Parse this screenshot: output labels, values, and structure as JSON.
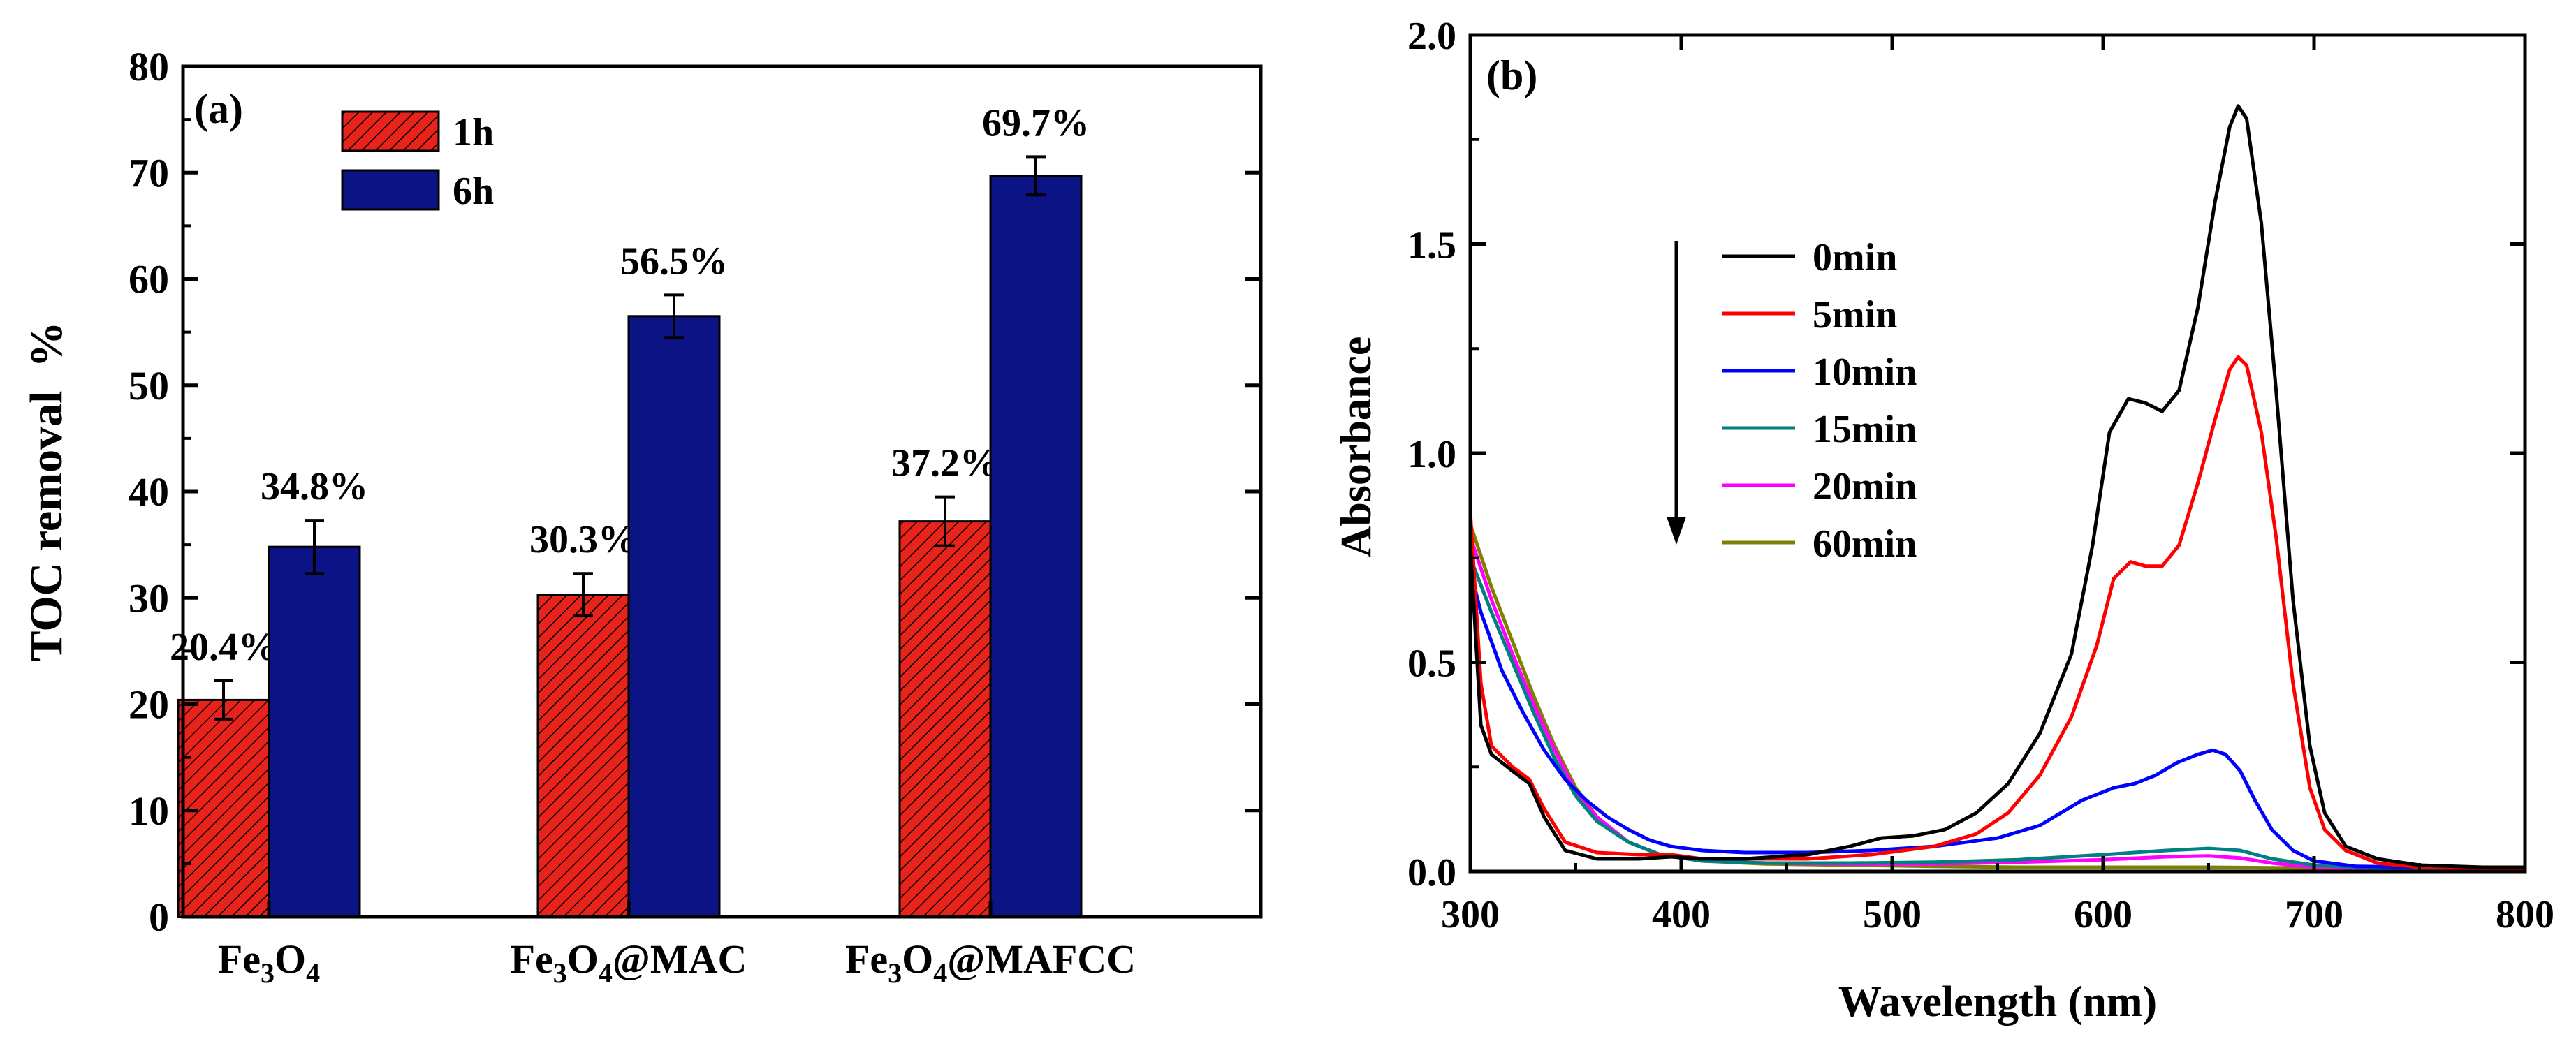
{
  "chart_data": [
    {
      "type": "bar",
      "panel_label": "(a)",
      "title": "",
      "xlabel": "",
      "ylabel": "TOC removal  %",
      "ylim": [
        0,
        80
      ],
      "yticks": [
        0,
        10,
        20,
        30,
        40,
        50,
        60,
        70,
        80
      ],
      "categories": [
        {
          "base": "Fe",
          "sub1": "3",
          "mid": "O",
          "sub2": "4",
          "suffix": ""
        },
        {
          "base": "Fe",
          "sub1": "3",
          "mid": "O",
          "sub2": "4",
          "suffix": "@MAC"
        },
        {
          "base": "Fe",
          "sub1": "3",
          "mid": "O",
          "sub2": "4",
          "suffix": "@MAFCC"
        }
      ],
      "series": [
        {
          "name": "1h",
          "color": "#e8231c",
          "pattern": "hatched",
          "values": [
            20.4,
            30.3,
            37.2
          ],
          "errors": [
            1.8,
            2.0,
            2.3
          ],
          "labels": [
            "20.4%",
            "30.3%",
            "37.2%"
          ]
        },
        {
          "name": "6h",
          "color": "#0c1384",
          "pattern": "solid",
          "values": [
            34.8,
            56.5,
            69.7
          ],
          "errors": [
            2.5,
            2.0,
            1.8
          ],
          "labels": [
            "34.8%",
            "56.5%",
            "69.7%"
          ]
        }
      ],
      "legend_position": "top-left"
    },
    {
      "type": "line",
      "panel_label": "(b)",
      "title": "",
      "xlabel": "Wavelength (nm)",
      "ylabel": "Absorbance",
      "xlim": [
        300,
        800
      ],
      "ylim": [
        0,
        2.0
      ],
      "xticks": [
        300,
        400,
        500,
        600,
        700,
        800
      ],
      "yticks": [
        "0.0",
        "0.5",
        "1.0",
        "1.5",
        "2.0"
      ],
      "legend_position": "center-left",
      "legend_arrow": "down",
      "series": [
        {
          "name": "0min",
          "color": "#000000",
          "points": [
            [
              300,
              0.78
            ],
            [
              305,
              0.35
            ],
            [
              310,
              0.28
            ],
            [
              320,
              0.24
            ],
            [
              328,
              0.21
            ],
            [
              335,
              0.13
            ],
            [
              345,
              0.05
            ],
            [
              360,
              0.03
            ],
            [
              380,
              0.03
            ],
            [
              395,
              0.035
            ],
            [
              410,
              0.03
            ],
            [
              430,
              0.03
            ],
            [
              460,
              0.04
            ],
            [
              480,
              0.06
            ],
            [
              495,
              0.08
            ],
            [
              510,
              0.085
            ],
            [
              525,
              0.1
            ],
            [
              540,
              0.14
            ],
            [
              555,
              0.21
            ],
            [
              570,
              0.33
            ],
            [
              585,
              0.52
            ],
            [
              595,
              0.78
            ],
            [
              603,
              1.05
            ],
            [
              612,
              1.13
            ],
            [
              620,
              1.12
            ],
            [
              628,
              1.1
            ],
            [
              636,
              1.15
            ],
            [
              645,
              1.35
            ],
            [
              653,
              1.6
            ],
            [
              660,
              1.78
            ],
            [
              664,
              1.83
            ],
            [
              668,
              1.8
            ],
            [
              675,
              1.55
            ],
            [
              682,
              1.15
            ],
            [
              690,
              0.65
            ],
            [
              698,
              0.3
            ],
            [
              705,
              0.14
            ],
            [
              715,
              0.06
            ],
            [
              730,
              0.03
            ],
            [
              750,
              0.015
            ],
            [
              780,
              0.01
            ],
            [
              800,
              0.01
            ]
          ]
        },
        {
          "name": "5min",
          "color": "#ff0000",
          "points": [
            [
              300,
              0.86
            ],
            [
              305,
              0.45
            ],
            [
              310,
              0.3
            ],
            [
              320,
              0.25
            ],
            [
              328,
              0.22
            ],
            [
              335,
              0.15
            ],
            [
              345,
              0.07
            ],
            [
              360,
              0.045
            ],
            [
              380,
              0.04
            ],
            [
              395,
              0.04
            ],
            [
              410,
              0.03
            ],
            [
              430,
              0.03
            ],
            [
              460,
              0.03
            ],
            [
              490,
              0.04
            ],
            [
              520,
              0.06
            ],
            [
              540,
              0.09
            ],
            [
              555,
              0.14
            ],
            [
              570,
              0.23
            ],
            [
              585,
              0.37
            ],
            [
              597,
              0.54
            ],
            [
              605,
              0.7
            ],
            [
              613,
              0.74
            ],
            [
              620,
              0.73
            ],
            [
              628,
              0.73
            ],
            [
              636,
              0.78
            ],
            [
              645,
              0.93
            ],
            [
              653,
              1.08
            ],
            [
              660,
              1.2
            ],
            [
              664,
              1.23
            ],
            [
              668,
              1.21
            ],
            [
              675,
              1.05
            ],
            [
              682,
              0.8
            ],
            [
              690,
              0.45
            ],
            [
              698,
              0.2
            ],
            [
              705,
              0.1
            ],
            [
              715,
              0.05
            ],
            [
              730,
              0.02
            ],
            [
              750,
              0.01
            ],
            [
              800,
              0.005
            ]
          ]
        },
        {
          "name": "10min",
          "color": "#0000ff",
          "points": [
            [
              300,
              0.72
            ],
            [
              305,
              0.62
            ],
            [
              315,
              0.48
            ],
            [
              325,
              0.38
            ],
            [
              335,
              0.29
            ],
            [
              345,
              0.22
            ],
            [
              355,
              0.17
            ],
            [
              365,
              0.13
            ],
            [
              375,
              0.1
            ],
            [
              385,
              0.075
            ],
            [
              395,
              0.06
            ],
            [
              410,
              0.05
            ],
            [
              430,
              0.045
            ],
            [
              460,
              0.045
            ],
            [
              490,
              0.05
            ],
            [
              520,
              0.06
            ],
            [
              550,
              0.08
            ],
            [
              570,
              0.11
            ],
            [
              590,
              0.17
            ],
            [
              605,
              0.2
            ],
            [
              615,
              0.21
            ],
            [
              625,
              0.23
            ],
            [
              635,
              0.26
            ],
            [
              645,
              0.28
            ],
            [
              652,
              0.29
            ],
            [
              658,
              0.28
            ],
            [
              665,
              0.24
            ],
            [
              672,
              0.17
            ],
            [
              680,
              0.1
            ],
            [
              690,
              0.05
            ],
            [
              700,
              0.025
            ],
            [
              720,
              0.012
            ],
            [
              750,
              0.01
            ],
            [
              800,
              0.005
            ]
          ]
        },
        {
          "name": "15min",
          "color": "#008080",
          "points": [
            [
              300,
              0.75
            ],
            [
              310,
              0.62
            ],
            [
              320,
              0.5
            ],
            [
              330,
              0.38
            ],
            [
              340,
              0.27
            ],
            [
              350,
              0.18
            ],
            [
              360,
              0.12
            ],
            [
              375,
              0.07
            ],
            [
              390,
              0.04
            ],
            [
              410,
              0.025
            ],
            [
              440,
              0.02
            ],
            [
              480,
              0.02
            ],
            [
              520,
              0.022
            ],
            [
              560,
              0.028
            ],
            [
              600,
              0.04
            ],
            [
              630,
              0.05
            ],
            [
              650,
              0.055
            ],
            [
              665,
              0.05
            ],
            [
              680,
              0.03
            ],
            [
              700,
              0.015
            ],
            [
              730,
              0.008
            ],
            [
              800,
              0.005
            ]
          ]
        },
        {
          "name": "20min",
          "color": "#ff00ff",
          "points": [
            [
              300,
              0.8
            ],
            [
              310,
              0.65
            ],
            [
              320,
              0.52
            ],
            [
              330,
              0.4
            ],
            [
              340,
              0.29
            ],
            [
              350,
              0.19
            ],
            [
              360,
              0.13
            ],
            [
              375,
              0.07
            ],
            [
              390,
              0.04
            ],
            [
              410,
              0.025
            ],
            [
              440,
              0.02
            ],
            [
              480,
              0.018
            ],
            [
              520,
              0.018
            ],
            [
              560,
              0.022
            ],
            [
              600,
              0.028
            ],
            [
              630,
              0.035
            ],
            [
              650,
              0.037
            ],
            [
              665,
              0.032
            ],
            [
              680,
              0.02
            ],
            [
              700,
              0.01
            ],
            [
              730,
              0.006
            ],
            [
              800,
              0.004
            ]
          ]
        },
        {
          "name": "60min",
          "color": "#808000",
          "points": [
            [
              300,
              0.83
            ],
            [
              310,
              0.68
            ],
            [
              320,
              0.55
            ],
            [
              330,
              0.42
            ],
            [
              340,
              0.3
            ],
            [
              350,
              0.2
            ],
            [
              360,
              0.13
            ],
            [
              375,
              0.07
            ],
            [
              390,
              0.04
            ],
            [
              410,
              0.025
            ],
            [
              440,
              0.018
            ],
            [
              480,
              0.015
            ],
            [
              520,
              0.012
            ],
            [
              560,
              0.01
            ],
            [
              600,
              0.01
            ],
            [
              650,
              0.01
            ],
            [
              700,
              0.008
            ],
            [
              800,
              0.005
            ]
          ]
        }
      ]
    }
  ]
}
